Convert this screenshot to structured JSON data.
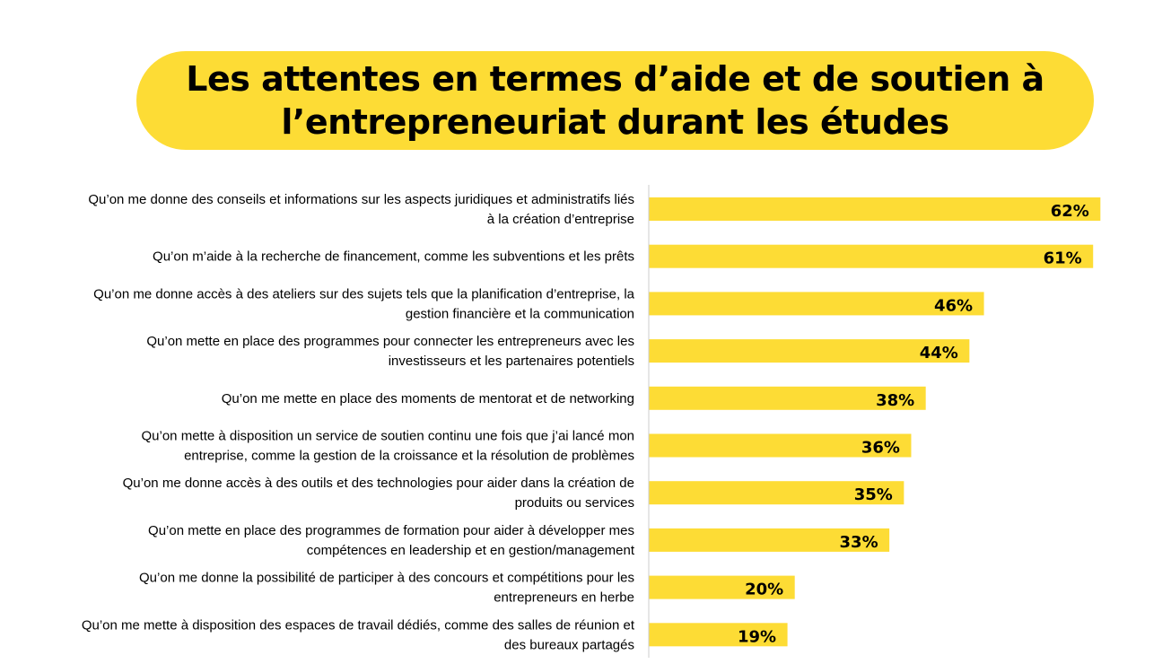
{
  "title": {
    "line1": "Les attentes en termes d’aide et de soutien à",
    "line2": "l’entrepreneuriat durant les études"
  },
  "colors": {
    "accent": "#FDDC35",
    "axis": "#cccccc",
    "text": "#000000"
  },
  "chart_data": {
    "type": "bar",
    "orientation": "horizontal",
    "title": "Les attentes en termes d’aide et de soutien à l’entrepreneuriat durant les études",
    "xlim": [
      0,
      100
    ],
    "grid": false,
    "legend": "none",
    "categories": [
      [
        "Qu’on me donne des conseils et informations sur les aspects juridiques et administratifs liés",
        "à la création d’entreprise"
      ],
      [
        "Qu’on m’aide à la recherche de financement, comme les subventions et les prêts"
      ],
      [
        "Qu’on me donne accès à des ateliers sur des sujets tels que la planification d’entreprise, la",
        "gestion financière et la communication"
      ],
      [
        "Qu’on mette en place des programmes pour connecter les entrepreneurs avec les",
        "investisseurs et les partenaires potentiels"
      ],
      [
        "Qu’on me mette en place des moments de mentorat et de networking"
      ],
      [
        "Qu’on mette à disposition un service de soutien continu une fois que j’ai lancé mon",
        "entreprise, comme la gestion de la croissance et la résolution de problèmes"
      ],
      [
        "Qu’on me donne accès à des outils et des technologies pour aider dans la création de",
        "produits ou services"
      ],
      [
        "Qu’on mette en place des programmes de formation pour aider à développer mes",
        "compétences en leadership et en gestion/management"
      ],
      [
        "Qu’on me donne la possibilité de participer à des concours et compétitions pour les",
        "entrepreneurs en herbe"
      ],
      [
        "Qu’on me mette à disposition des espaces de travail dédiés, comme des salles de réunion et",
        "des bureaux partagés"
      ]
    ],
    "values": [
      62,
      61,
      46,
      44,
      38,
      36,
      35,
      33,
      20,
      19
    ],
    "value_labels": [
      "62%",
      "61%",
      "46%",
      "44%",
      "38%",
      "36%",
      "35%",
      "33%",
      "20%",
      "19%"
    ]
  }
}
